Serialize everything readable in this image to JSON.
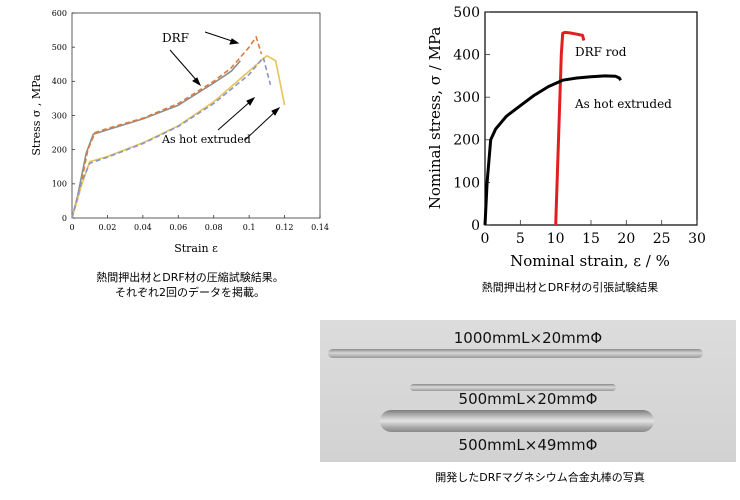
{
  "chart_data": [
    {
      "type": "line",
      "title": "",
      "xlabel": "Strain ε",
      "ylabel": "Stress σ , MPa",
      "xlim": [
        0,
        0.14
      ],
      "ylim": [
        0,
        600
      ],
      "xticks": [
        "0",
        "0.02",
        "0.04",
        "0.06",
        "0.08",
        "0.1",
        "0.12",
        "0.14"
      ],
      "yticks": [
        "0",
        "100",
        "200",
        "300",
        "400",
        "500",
        "600"
      ],
      "annotations": [
        {
          "text": "DRF"
        },
        {
          "text": "As hot extruded"
        }
      ],
      "series": [
        {
          "color": "#8c8c8c",
          "style": "solid",
          "x": [
            0,
            0.003,
            0.008,
            0.012,
            0.02,
            0.04,
            0.06,
            0.08,
            0.09,
            0.095
          ],
          "y": [
            0,
            60,
            190,
            245,
            258,
            290,
            330,
            395,
            430,
            460
          ]
        },
        {
          "color": "#e07b39",
          "style": "dashed",
          "x": [
            0,
            0.004,
            0.009,
            0.013,
            0.02,
            0.04,
            0.06,
            0.08,
            0.09,
            0.1,
            0.104,
            0.107
          ],
          "y": [
            0,
            70,
            200,
            250,
            262,
            292,
            335,
            400,
            440,
            500,
            530,
            480
          ]
        },
        {
          "color": "#e8c35a",
          "style": "solid",
          "x": [
            0,
            0.005,
            0.01,
            0.02,
            0.04,
            0.06,
            0.08,
            0.1,
            0.11,
            0.115,
            0.12
          ],
          "y": [
            0,
            90,
            165,
            180,
            220,
            270,
            340,
            430,
            475,
            460,
            330
          ]
        },
        {
          "color": "#8a94c8",
          "style": "dashed",
          "x": [
            0,
            0.005,
            0.01,
            0.02,
            0.04,
            0.06,
            0.08,
            0.1,
            0.108,
            0.112
          ],
          "y": [
            0,
            100,
            160,
            178,
            218,
            268,
            335,
            420,
            470,
            390
          ]
        }
      ]
    },
    {
      "type": "line",
      "title": "",
      "xlabel": "Nominal strain, ε / %",
      "ylabel": "Nominal stress, σ / MPa",
      "xlim": [
        0,
        30
      ],
      "ylim": [
        0,
        500
      ],
      "xticks": [
        "0",
        "5",
        "10",
        "15",
        "20",
        "25",
        "30"
      ],
      "yticks": [
        "0",
        "100",
        "200",
        "300",
        "400",
        "500"
      ],
      "annotations": [
        {
          "text": "DRF rod"
        },
        {
          "text": "As hot extruded"
        }
      ],
      "series": [
        {
          "name": "DRF rod",
          "color": "#e02020",
          "x": [
            10,
            10.4,
            10.8,
            11.0,
            11.3,
            12,
            13,
            13.8,
            14.0
          ],
          "y": [
            0,
            200,
            400,
            450,
            452,
            451,
            448,
            445,
            433
          ]
        },
        {
          "name": "As hot extruded",
          "color": "#000000",
          "x": [
            0,
            0.3,
            0.8,
            1.5,
            3,
            5,
            7,
            9,
            11,
            13,
            15,
            17,
            18.5,
            19,
            19.2
          ],
          "y": [
            0,
            100,
            200,
            225,
            255,
            280,
            305,
            325,
            340,
            345,
            348,
            350,
            349,
            345,
            340
          ]
        }
      ]
    }
  ],
  "captions": {
    "fig1_line1": "熱間押出材とDRF材の圧縮試験結果。",
    "fig1_line2": "それぞれ2回のデータを掲載。",
    "fig2": "熱間押出材とDRF材の引張試験結果",
    "fig3": "開発したDRFマグネシウム合金丸棒の写真"
  },
  "photo": {
    "rod_labels": [
      "1000mmL×20mmΦ",
      "500mmL×20mmΦ",
      "500mmL×49mmΦ"
    ]
  }
}
